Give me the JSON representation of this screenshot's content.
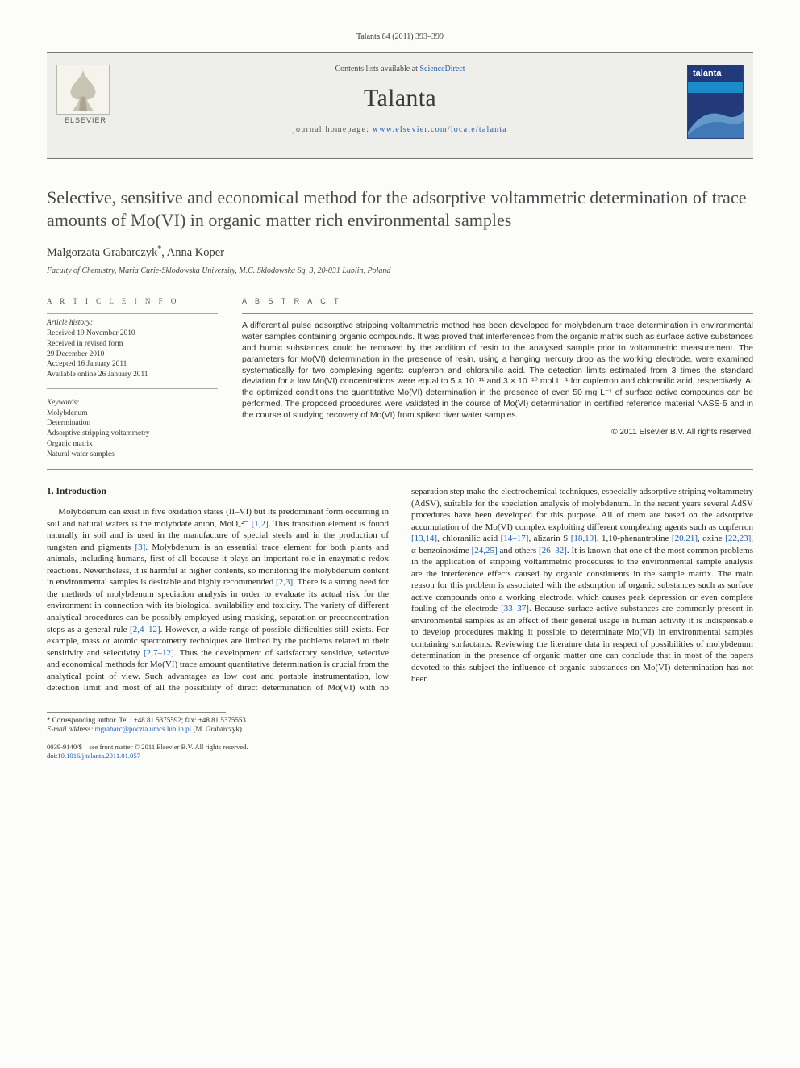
{
  "header": {
    "citation": "Talanta 84 (2011) 393–399",
    "contents_prefix": "Contents lists available at ",
    "contents_link": "ScienceDirect",
    "journal_title": "Talanta",
    "homepage_prefix": "journal homepage: ",
    "homepage_url": "www.elsevier.com/locate/talanta",
    "publisher_word": "ELSEVIER",
    "cover_label": "talanta"
  },
  "article": {
    "title": "Selective, sensitive and economical method for the adsorptive voltammetric determination of trace amounts of Mo(VI) in organic matter rich environmental samples",
    "authors_html": "Malgorzata Grabarczyk*, Anna Koper",
    "affiliation": "Faculty of Chemistry, Maria Curie-Sklodowska University, M.C. Sklodowska Sq. 3, 20-031 Lublin, Poland"
  },
  "info": {
    "section_label": "A R T I C L E   I N F O",
    "history_heading": "Article history:",
    "history": [
      "Received 19 November 2010",
      "Received in revised form",
      "29 December 2010",
      "Accepted 16 January 2011",
      "Available online 26 January 2011"
    ],
    "keywords_heading": "Keywords:",
    "keywords": [
      "Molybdenum",
      "Determination",
      "Adsorptive stripping voltammetry",
      "Organic matrix",
      "Natural water samples"
    ]
  },
  "abstract": {
    "section_label": "A B S T R A C T",
    "body": "A differential pulse adsorptive stripping voltammetric method has been developed for molybdenum trace determination in environmental water samples containing organic compounds. It was proved that interferences from the organic matrix such as surface active substances and humic substances could be removed by the addition of resin to the analysed sample prior to voltammetric measurement. The parameters for Mo(VI) determination in the presence of resin, using a hanging mercury drop as the working electrode, were examined systematically for two complexing agents: cupferron and chloranilic acid. The detection limits estimated from 3 times the standard deviation for a low Mo(VI) concentrations were equal to 5 × 10⁻¹¹ and 3 × 10⁻¹⁰ mol L⁻¹ for cupferron and chloranilic acid, respectively. At the optimized conditions the quantitative Mo(VI) determination in the presence of even 50 mg L⁻¹ of surface active compounds can be performed. The proposed procedures were validated in the course of Mo(VI) determination in certified reference material NASS-5 and in the course of studying recovery of Mo(VI) from spiked river water samples.",
    "copyright": "© 2011 Elsevier B.V. All rights reserved."
  },
  "body": {
    "heading": "1.  Introduction",
    "text": "Molybdenum can exist in five oxidation states (II–VI) but its predominant form occurring in soil and natural waters is the molybdate anion, MoO₄²⁻ [1,2]. This transition element is found naturally in soil and is used in the manufacture of special steels and in the production of tungsten and pigments [3]. Molybdenum is an essential trace element for both plants and animals, including humans, first of all because it plays an important role in enzymatic redox reactions. Nevertheless, it is harmful at higher contents, so monitoring the molybdenum content in environmental samples is desirable and highly recommended [2,3]. There is a strong need for the methods of molybdenum speciation analysis in order to evaluate its actual risk for the environment in connection with its biological availability and toxicity. The variety of different analytical procedures can be possibly employed using masking, separation or preconcentration steps as a general rule [2,4–12]. However, a wide range of possible difficulties still exists. For example, mass or atomic spectrometry techniques are limited by the problems related to their sensitivity and selectivity [2,7–12]. Thus the development of satisfactory sensitive, selective and economical methods for Mo(VI) trace amount quantitative determination is crucial from the analytical point of view. Such advantages as low cost and portable instrumentation, low detection limit and most of all the possibility of direct determination of Mo(VI) with no separation step make the electrochemical techniques, especially adsorptive striping voltammetry (AdSV), suitable for the speciation analysis of molybdenum. In the recent years several AdSV procedures have been developed for this purpose. All of them are based on the adsorptive accumulation of the Mo(VI) complex exploiting different complexing agents such as cupferron [13,14], chloranilic acid [14–17], alizarin S [18,19], 1,10-phenantroline [20,21], oxine [22,23], α-benzoinoxime [24,25] and others [26–32]. It is known that one of the most common problems in the application of stripping voltammetric procedures to the environmental sample analysis are the interference effects caused by organic constituents in the sample matrix. The main reason for this problem is associated with the adsorption of organic substances such as surface active compounds onto a working electrode, which causes peak depression or even complete fouling of the electrode [33–37]. Because surface active substances are commonly present in environmental samples as an effect of their general usage in human activity it is indispensable to develop procedures making it possible to determinate Mo(VI) in environmental samples containing surfactants. Reviewing the literature data in respect of possibilities of molybdenum determination in the presence of organic matter one can conclude that in most of the papers devoted to this subject the influence of organic substances on Mo(VI) determination has not been"
  },
  "footnotes": {
    "corr": "* Corresponding author. Tel.: +48 81 5375592; fax: +48 81 5375553.",
    "email_label": "E-mail address: ",
    "email": "mgrabarc@poczta.umcs.lublin.pl",
    "email_suffix": " (M. Grabarczyk)."
  },
  "footer": {
    "line1": "0039-9140/$ – see front matter © 2011 Elsevier B.V. All rights reserved.",
    "doi_label": "doi:",
    "doi": "10.1016/j.talanta.2011.01.057"
  },
  "colors": {
    "link": "#1a5fb4",
    "cover_bg": "#233a7a",
    "cover_band": "#1a8cc7"
  }
}
